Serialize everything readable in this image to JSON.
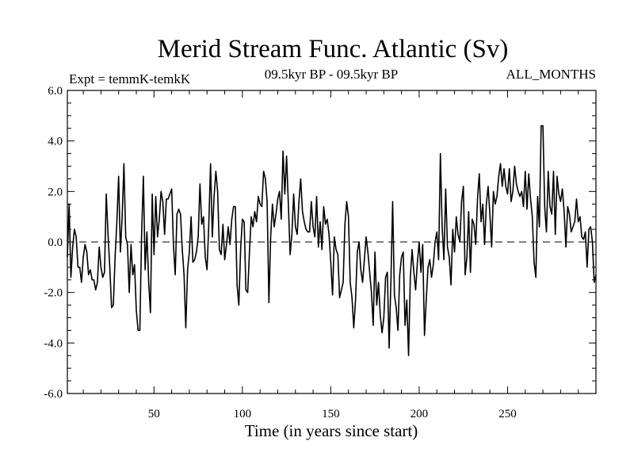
{
  "chart_data": {
    "type": "line",
    "title": "Merid Stream Func. Atlantic (Sv)",
    "subtitle_left": "Expt = temmK-temkK",
    "subtitle_center": "09.5kyr BP - 09.5kyr BP",
    "subtitle_right": "ALL_MONTHS",
    "xlabel": "Time (in years since start)",
    "ylabel": "",
    "xlim": [
      1,
      300
    ],
    "ylim": [
      -6,
      6
    ],
    "x_ticks": [
      50,
      100,
      150,
      200,
      250
    ],
    "x_tick_labels": [
      "50",
      "100",
      "150",
      "200",
      "250"
    ],
    "y_ticks": [
      -6,
      -4,
      -2,
      0,
      2,
      4,
      6
    ],
    "y_tick_labels": [
      "-6.0",
      "-4.0",
      "-2.0",
      "0.0",
      "2.0",
      "4.0",
      "6.0"
    ],
    "zero_line": true,
    "grid": false,
    "series": [
      {
        "name": "Merid Stream Func. Atlantic",
        "x_start": 1,
        "x_step": 1,
        "values": [
          -0.6,
          1.5,
          -1.4,
          -0.2,
          0.5,
          0.2,
          -1.0,
          -1.0,
          -1.6,
          -0.6,
          -0.1,
          -0.4,
          -1.3,
          -1.1,
          -1.5,
          -1.5,
          -1.9,
          -1.6,
          -0.2,
          -1.0,
          -1.4,
          -1.2,
          1.9,
          0.3,
          -1.0,
          -2.6,
          -2.5,
          -0.6,
          0.8,
          2.6,
          -0.4,
          1.0,
          3.1,
          0.2,
          -0.1,
          -2.0,
          -0.1,
          -1.3,
          -0.9,
          -2.7,
          -3.5,
          -3.5,
          0.3,
          2.6,
          -1.1,
          0.4,
          -1.6,
          -2.8,
          1.9,
          -0.5,
          1.8,
          0.2,
          0.9,
          2.0,
          1.6,
          0.3,
          1.7,
          1.7,
          1.9,
          2.1,
          -0.1,
          -1.3,
          1.1,
          1.3,
          1.1,
          -0.3,
          -1.3,
          -3.4,
          -1.1,
          -0.4,
          1.0,
          -0.8,
          -0.7,
          -0.4,
          0.2,
          2.3,
          0.7,
          1.0,
          -0.6,
          -1.1,
          0.7,
          3.1,
          0.2,
          1.8,
          2.8,
          2.0,
          -0.3,
          -0.5,
          0.7,
          -0.7,
          -0.1,
          0.6,
          -0.1,
          0.9,
          1.4,
          1.4,
          -1.7,
          -2.5,
          -0.3,
          0.9,
          0.8,
          -1.9,
          -2.0,
          -0.4,
          1.0,
          0.6,
          1.2,
          0.8,
          1.8,
          1.5,
          1.4,
          2.8,
          2.5,
          1.6,
          -2.4,
          0.2,
          1.5,
          0.6,
          1.1,
          1.7,
          2.0,
          0.9,
          3.6,
          1.9,
          3.4,
          1.5,
          -0.5,
          0.3,
          1.9,
          0.6,
          0.3,
          1.6,
          2.5,
          1.2,
          0.8,
          0.5,
          0.4,
          0.4,
          1.6,
          0.6,
          0.2,
          1.8,
          -0.2,
          0.8,
          -0.3,
          1.4,
          0.7,
          0.9,
          0.3,
          -0.8,
          -2.1,
          0.2,
          -0.3,
          -0.5,
          -2.2,
          -1.9,
          -1.6,
          0.7,
          1.6,
          1.0,
          -1.6,
          -2.2,
          -3.4,
          -2.3,
          -0.4,
          0.0,
          -1.1,
          -1.6,
          -0.7,
          0.2,
          -0.4,
          -1.2,
          -2.0,
          -3.3,
          -0.4,
          -2.5,
          -1.6,
          -2.9,
          -3.6,
          -3.0,
          -1.4,
          -1.2,
          -4.2,
          -1.6,
          1.6,
          -2.1,
          -2.6,
          -3.5,
          -1.3,
          -0.6,
          -0.4,
          -3.3,
          -2.3,
          -4.5,
          -1.4,
          -0.3,
          -1.2,
          -1.9,
          -0.8,
          0.0,
          -1.2,
          -0.1,
          -3.7,
          -2.3,
          -1.0,
          -0.7,
          -1.4,
          -0.9,
          0.0,
          0.4,
          -0.7,
          3.5,
          0.6,
          -0.7,
          2.1,
          -0.2,
          -0.6,
          -1.7,
          0.5,
          -0.4,
          1.0,
          0.3,
          0.0,
          1.6,
          2.2,
          -1.3,
          -0.6,
          1.2,
          -1.2,
          0.9,
          0.7,
          -0.1,
          1.7,
          2.7,
          0.8,
          1.5,
          -0.1,
          1.5,
          2.2,
          1.1,
          -0.2,
          2.0,
          1.5,
          1.8,
          2.6,
          3.1,
          2.2,
          2.9,
          2.2,
          1.9,
          2.9,
          1.6,
          2.0,
          3.0,
          2.3,
          2.0,
          1.8,
          2.0,
          1.4,
          2.8,
          1.3,
          2.7,
          1.7,
          1.0,
          -0.8,
          -1.4,
          1.8,
          0.6,
          4.6,
          4.6,
          1.4,
          0.4,
          2.8,
          1.4,
          1.1,
          2.8,
          0.3,
          2.6,
          1.9,
          1.6,
          2.1,
          1.2,
          -0.2,
          1.4,
          1.1,
          0.4,
          0.6,
          0.8,
          1.7,
          0.8,
          1.0,
          0.2,
          0.1,
          0.4,
          -1.0,
          0.5,
          0.6,
          0.0,
          -1.6,
          -1.3
        ]
      }
    ]
  }
}
